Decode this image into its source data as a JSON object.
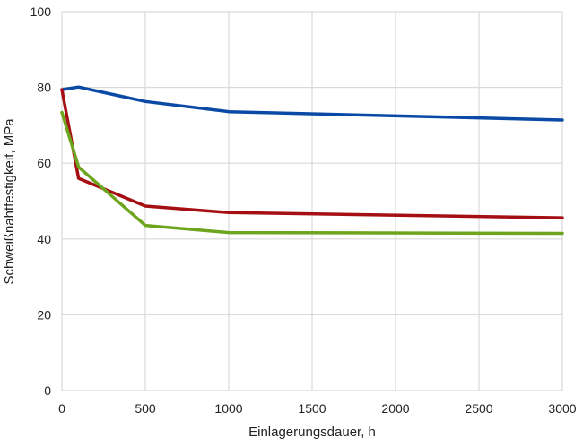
{
  "chart_data": {
    "type": "line",
    "title": "",
    "xlabel": "Einlagerungsdauer, h",
    "ylabel": "Schweißnahtfestigkeit, MPa",
    "xlim": [
      0,
      3000
    ],
    "ylim": [
      0,
      100
    ],
    "xticks": [
      0,
      500,
      1000,
      1500,
      2000,
      2500,
      3000
    ],
    "yticks": [
      0,
      20,
      40,
      60,
      80,
      100
    ],
    "grid": true,
    "legend": "none",
    "series": [
      {
        "color": "#0a4aa6",
        "x": [
          0,
          100,
          500,
          1000,
          3000
        ],
        "y": [
          79.4,
          80.1,
          76.3,
          73.6,
          71.4
        ]
      },
      {
        "color": "#a50e12",
        "x": [
          0,
          100,
          500,
          1000,
          3000
        ],
        "y": [
          79.4,
          56.0,
          48.7,
          47.0,
          45.6
        ]
      },
      {
        "color": "#6ea51e",
        "x": [
          0,
          100,
          500,
          1000,
          3000
        ],
        "y": [
          73.4,
          59.0,
          43.6,
          41.7,
          41.5
        ]
      }
    ]
  }
}
